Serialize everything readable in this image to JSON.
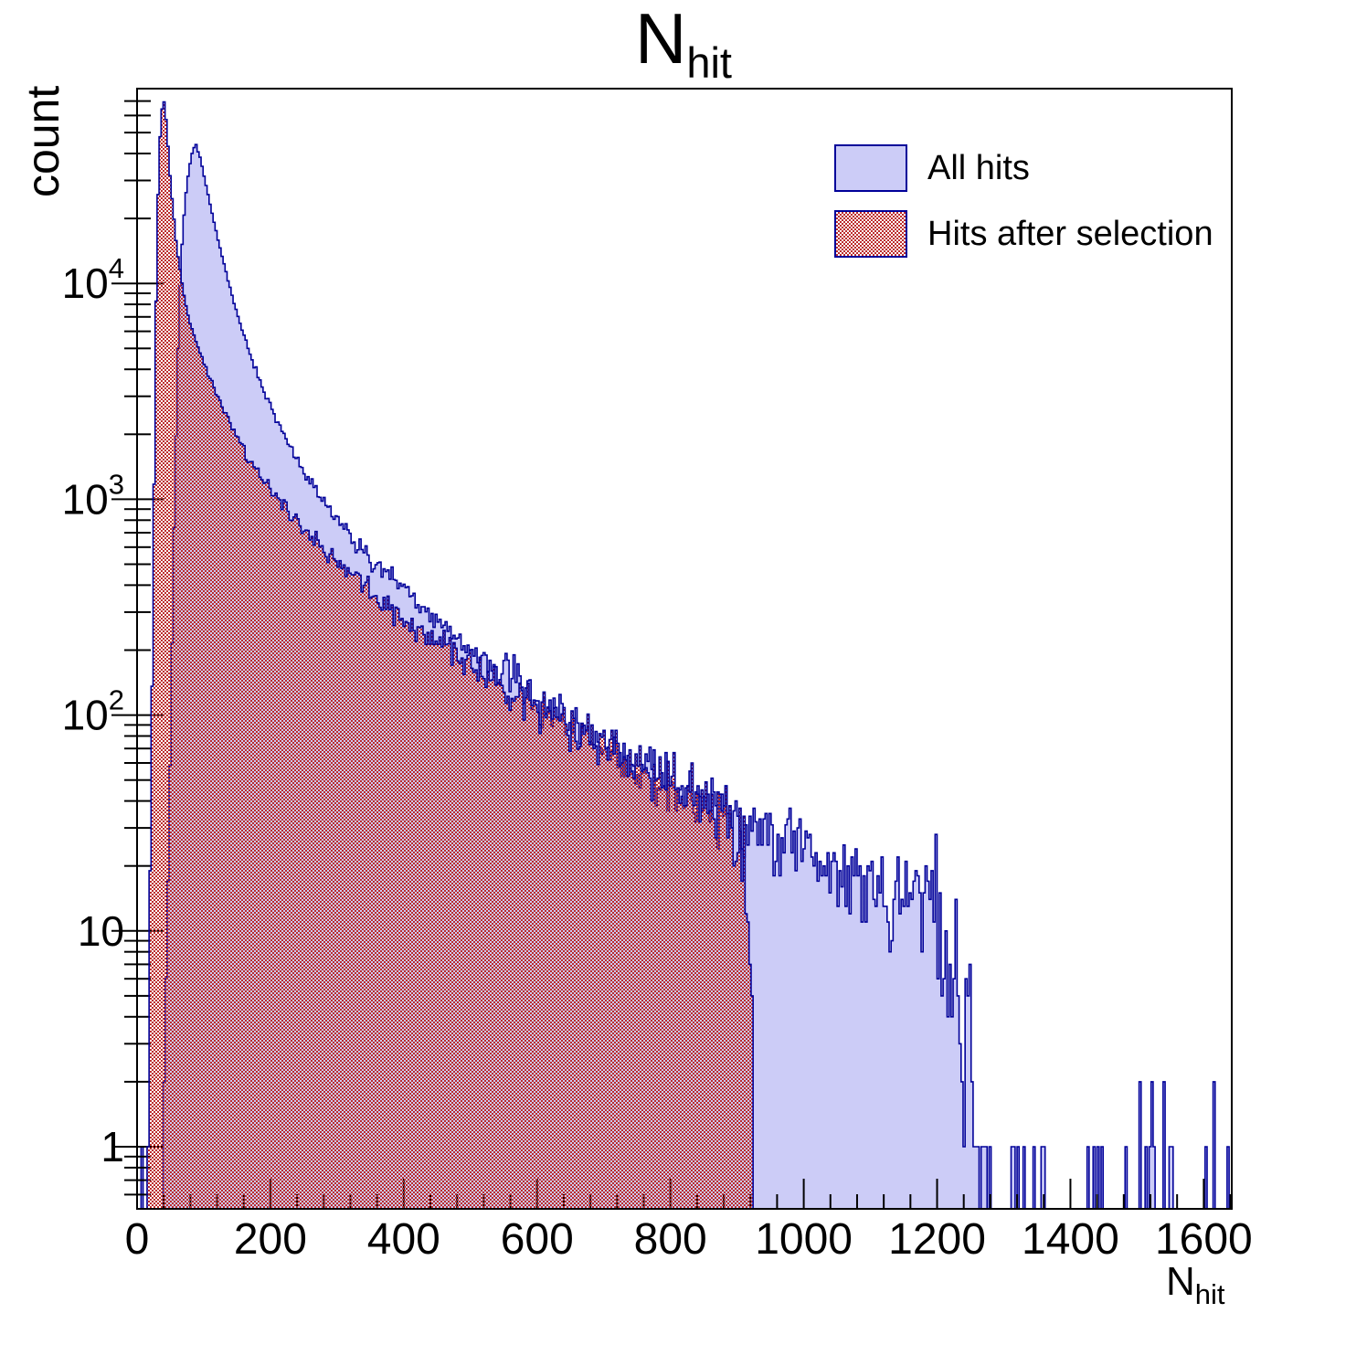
{
  "title": {
    "main": "N",
    "subscript": "hit"
  },
  "y_axis": {
    "label": "count",
    "scale": "log10",
    "tick_labels": [
      {
        "value": 1,
        "base": "1",
        "exp": ""
      },
      {
        "value": 10,
        "base": "10",
        "exp": ""
      },
      {
        "value": 100,
        "base": "10",
        "exp": "2"
      },
      {
        "value": 1000,
        "base": "10",
        "exp": "3"
      },
      {
        "value": 10000,
        "base": "10",
        "exp": "4"
      }
    ]
  },
  "x_axis": {
    "label_main": "N",
    "label_subscript": "hit",
    "tick_labels": [
      "0",
      "200",
      "400",
      "600",
      "800",
      "1000",
      "1200",
      "1400",
      "1600"
    ],
    "tick_values": [
      0,
      200,
      400,
      600,
      800,
      1000,
      1200,
      1400,
      1600
    ],
    "minor_step": 40
  },
  "legend": {
    "items": [
      {
        "label": "All hits",
        "swatch": "solid-lavender"
      },
      {
        "label": "Hits after selection",
        "swatch": "red-checker"
      }
    ]
  },
  "colors": {
    "hist_fill_all": "#ccccf7",
    "hist_line": "#000099",
    "hatch_red": "#bc2b2b",
    "axis": "#000000",
    "background": "#ffffff"
  },
  "chart_data": {
    "type": "histogram-overlay",
    "title": "N_hit",
    "xlabel": "N_hit",
    "ylabel": "count",
    "x_range": [
      0,
      1642
    ],
    "y_range": [
      0.515,
      79000
    ],
    "y_scale": "log10",
    "bin_width": 3,
    "x_major_ticks": [
      0,
      200,
      400,
      600,
      800,
      1000,
      1200,
      1400,
      1600
    ],
    "x_minor_step": 40,
    "y_major_ticks": [
      1,
      10,
      100,
      1000,
      10000
    ],
    "grid": false,
    "legend_position": "top-right",
    "noise": "poisson-like bin-to-bin scatter around envelope",
    "series": [
      {
        "name": "All hits",
        "style": "solid",
        "fill": "#ccccf7",
        "line": "#000099",
        "peak": {
          "x": 88,
          "count": 44000
        },
        "envelope_x": [
          38,
          42,
          46,
          50,
          54,
          58,
          62,
          66,
          72,
          78,
          83,
          88,
          95,
          105,
          115,
          125,
          135,
          145,
          155,
          170,
          185,
          200,
          220,
          240,
          260,
          280,
          300,
          330,
          360,
          400,
          440,
          480,
          520,
          560,
          600,
          650,
          700,
          750,
          800,
          850,
          900,
          950,
          1000,
          1050,
          1100,
          1140,
          1170,
          1195,
          1210,
          1222,
          1235,
          1250,
          1280,
          1340,
          1420,
          1505,
          1560,
          1641
        ],
        "envelope_counts": [
          0.7,
          3,
          15,
          80,
          400,
          1700,
          6000,
          13000,
          24000,
          34000,
          41000,
          44000,
          38000,
          27000,
          19500,
          14500,
          10800,
          8200,
          6400,
          4700,
          3500,
          2700,
          2000,
          1520,
          1190,
          960,
          800,
          620,
          490,
          370,
          290,
          230,
          185,
          150,
          115,
          90,
          71,
          57,
          47,
          39,
          33,
          28,
          24,
          21,
          18,
          15.5,
          13.5,
          11,
          8,
          4.5,
          2.2,
          1.3,
          0.9,
          0.65,
          0.55,
          0.8,
          0.6,
          0.6
        ],
        "isolated_bins": [
          {
            "x": 8,
            "count": 1
          },
          {
            "x": 1505,
            "count": 2
          }
        ]
      },
      {
        "name": "Hits after selection",
        "style": "checker",
        "fill": "#bc2b2b",
        "line": "#000099",
        "peak": {
          "x": 40,
          "count": 70000
        },
        "cutoff_x": 926,
        "envelope_x": [
          16,
          18,
          20,
          22,
          24,
          26,
          28,
          30,
          32,
          34,
          36,
          38,
          40,
          42,
          44,
          47,
          50,
          54,
          58,
          62,
          67,
          72,
          78,
          85,
          92,
          100,
          110,
          120,
          132,
          145,
          160,
          175,
          190,
          205,
          225,
          245,
          265,
          285,
          305,
          330,
          360,
          395,
          430,
          470,
          510,
          550,
          590,
          635,
          680,
          725,
          770,
          815,
          855,
          890,
          908,
          916,
          920,
          924
        ],
        "envelope_counts": [
          0.7,
          3,
          15,
          80,
          400,
          1800,
          6500,
          17000,
          30000,
          45000,
          58000,
          67000,
          70000,
          66000,
          55000,
          41000,
          30000,
          22000,
          16500,
          13000,
          10200,
          8300,
          6900,
          5800,
          5000,
          4300,
          3600,
          3050,
          2550,
          2100,
          1700,
          1430,
          1220,
          1060,
          890,
          760,
          655,
          570,
          500,
          425,
          355,
          295,
          245,
          200,
          165,
          137,
          114,
          94,
          78,
          65,
          54,
          44,
          37,
          30,
          22,
          12,
          5,
          1
        ],
        "isolated_bins": []
      }
    ]
  }
}
